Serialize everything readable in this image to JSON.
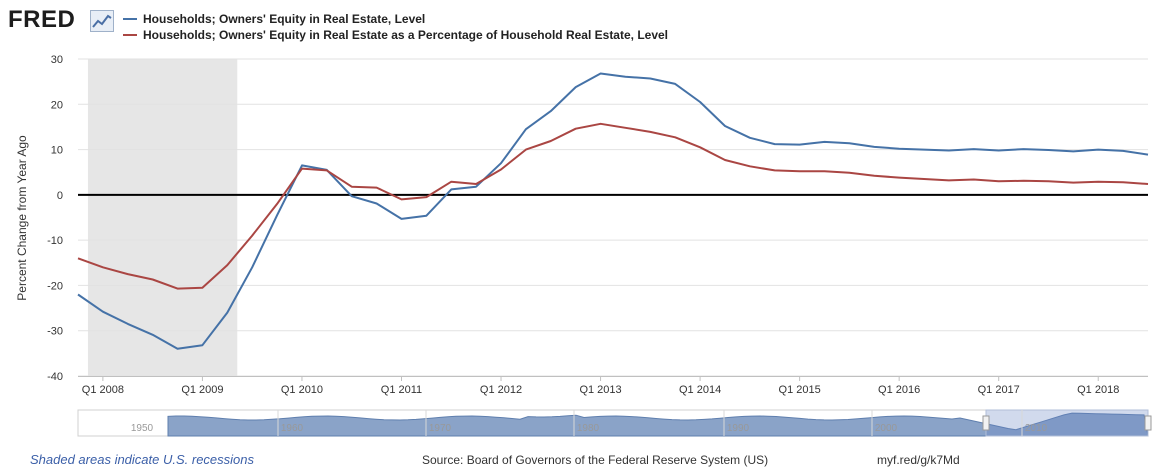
{
  "header": {
    "logo_text": "FRED",
    "logo_icon": "line-graph-icon"
  },
  "legend": [
    {
      "label": "Households; Owners' Equity in Real Estate, Level",
      "color": "#4572a7"
    },
    {
      "label": "Households; Owners' Equity in Real Estate as a Percentage of Household Real Estate, Level",
      "color": "#aa4643"
    }
  ],
  "footer": {
    "recession_note": "Shaded areas indicate U.S. recessions",
    "source": "Source: Board of Governors of the Federal Reserve System (US)",
    "short_url": "myf.red/g/k7Md"
  },
  "navigator": {
    "labels": [
      "1950",
      "1960",
      "1970",
      "1980",
      "1990",
      "2000",
      "2010"
    ]
  },
  "chart_data": {
    "type": "line",
    "title": "",
    "xlabel": "",
    "ylabel": "Percent Change from Year Ago",
    "xlim": [
      2007.75,
      2018.5
    ],
    "ylim": [
      -40,
      30
    ],
    "y_ticks": [
      -40,
      -30,
      -20,
      -10,
      0,
      10,
      20,
      30
    ],
    "x_ticks": [
      {
        "label": "Q1 2008",
        "x": 2008.0
      },
      {
        "label": "Q1 2009",
        "x": 2009.0
      },
      {
        "label": "Q1 2010",
        "x": 2010.0
      },
      {
        "label": "Q1 2011",
        "x": 2011.0
      },
      {
        "label": "Q1 2012",
        "x": 2012.0
      },
      {
        "label": "Q1 2013",
        "x": 2013.0
      },
      {
        "label": "Q1 2014",
        "x": 2014.0
      },
      {
        "label": "Q1 2015",
        "x": 2015.0
      },
      {
        "label": "Q1 2016",
        "x": 2016.0
      },
      {
        "label": "Q1 2017",
        "x": 2017.0
      },
      {
        "label": "Q1 2018",
        "x": 2018.0
      }
    ],
    "recessions": [
      [
        2007.85,
        2009.35
      ]
    ],
    "zero_line": 0,
    "x": [
      2007.75,
      2008.0,
      2008.25,
      2008.5,
      2008.75,
      2009.0,
      2009.25,
      2009.5,
      2009.75,
      2010.0,
      2010.25,
      2010.5,
      2010.75,
      2011.0,
      2011.25,
      2011.5,
      2011.75,
      2012.0,
      2012.25,
      2012.5,
      2012.75,
      2013.0,
      2013.25,
      2013.5,
      2013.75,
      2014.0,
      2014.25,
      2014.5,
      2014.75,
      2015.0,
      2015.25,
      2015.5,
      2015.75,
      2016.0,
      2016.25,
      2016.5,
      2016.75,
      2017.0,
      2017.25,
      2017.5,
      2017.75,
      2018.0,
      2018.25,
      2018.5
    ],
    "series": [
      {
        "name": "Households; Owners' Equity in Real Estate, Level",
        "color": "#4572a7",
        "values": [
          -22.0,
          -25.8,
          -28.5,
          -30.9,
          -34.0,
          -33.2,
          -26.0,
          -16.0,
          -4.5,
          6.5,
          5.5,
          -0.3,
          -1.9,
          -5.3,
          -4.6,
          1.2,
          1.8,
          7.0,
          14.5,
          18.5,
          23.8,
          26.8,
          26.1,
          25.7,
          24.5,
          20.5,
          15.2,
          12.6,
          11.2,
          11.1,
          11.7,
          11.4,
          10.6,
          10.2,
          10.0,
          9.8,
          10.1,
          9.8,
          10.1,
          9.9,
          9.6,
          10.0,
          9.7,
          8.9
        ]
      },
      {
        "name": "Households; Owners' Equity in Real Estate as a Percentage of Household Real Estate, Level",
        "color": "#aa4643",
        "values": [
          -14.0,
          -16.0,
          -17.5,
          -18.7,
          -20.7,
          -20.5,
          -15.5,
          -9.0,
          -2.0,
          5.8,
          5.4,
          1.8,
          1.6,
          -1.0,
          -0.5,
          2.9,
          2.4,
          5.6,
          10.0,
          11.9,
          14.6,
          15.7,
          14.8,
          13.9,
          12.7,
          10.5,
          7.7,
          6.3,
          5.4,
          5.2,
          5.2,
          4.9,
          4.2,
          3.8,
          3.5,
          3.2,
          3.4,
          3.0,
          3.1,
          3.0,
          2.7,
          2.9,
          2.8,
          2.4
        ]
      }
    ]
  }
}
